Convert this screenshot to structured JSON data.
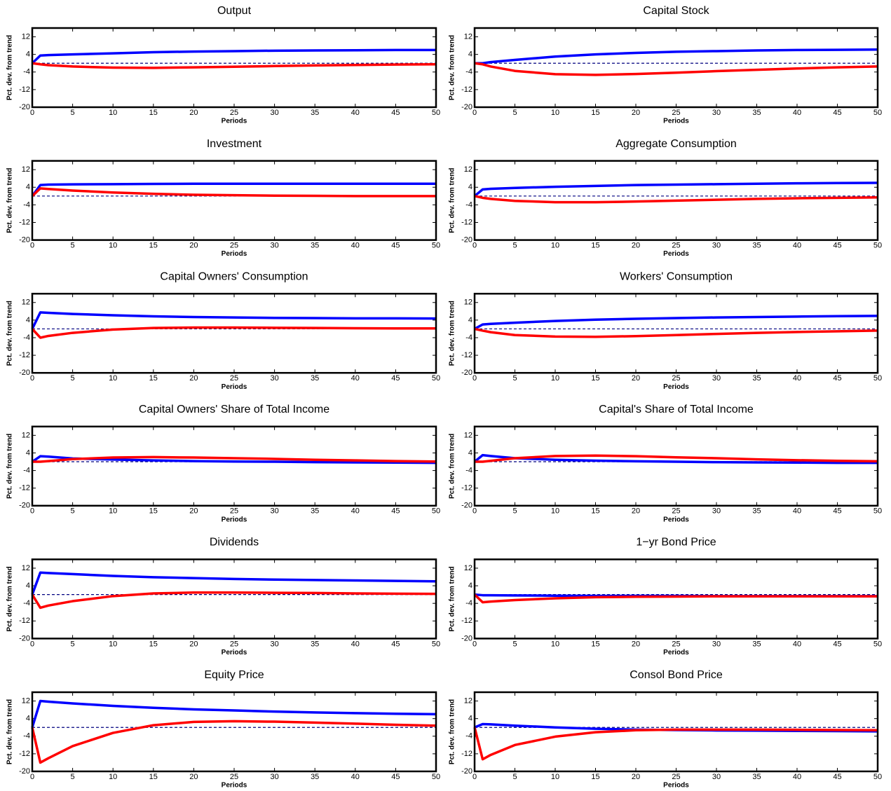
{
  "chart_data": [
    {
      "type": "line",
      "title": "Output",
      "xlabel": "Periods",
      "ylabel": "Pct. dev. from trend",
      "xlim": [
        0,
        50
      ],
      "xticks": [
        0,
        5,
        10,
        15,
        20,
        25,
        30,
        35,
        40,
        45,
        50
      ],
      "ylim": [
        -20,
        16
      ],
      "yticks": [
        -20,
        -12,
        -4,
        4,
        12
      ],
      "hline": 0,
      "hline_color": "#000080",
      "x": [
        0,
        1,
        2,
        5,
        10,
        15,
        20,
        25,
        30,
        35,
        40,
        45,
        50
      ],
      "series": [
        {
          "color": "#0000ff",
          "values": [
            0,
            3.5,
            3.7,
            4,
            4.5,
            5,
            5.3,
            5.5,
            5.7,
            5.8,
            5.9,
            6,
            6
          ]
        },
        {
          "color": "#ff0000",
          "values": [
            0,
            -0.5,
            -0.9,
            -1.5,
            -2,
            -2.1,
            -1.9,
            -1.6,
            -1.3,
            -1,
            -0.8,
            -0.6,
            -0.5
          ]
        }
      ]
    },
    {
      "type": "line",
      "title": "Capital Stock",
      "xlabel": "Periods",
      "ylabel": "Pct. dev. from trend",
      "xlim": [
        0,
        50
      ],
      "xticks": [
        0,
        5,
        10,
        15,
        20,
        25,
        30,
        35,
        40,
        45,
        50
      ],
      "ylim": [
        -20,
        16
      ],
      "yticks": [
        -20,
        -12,
        -4,
        4,
        12
      ],
      "hline": 0,
      "hline_color": "#000080",
      "x": [
        0,
        1,
        2,
        5,
        10,
        15,
        20,
        25,
        30,
        35,
        40,
        45,
        50
      ],
      "series": [
        {
          "color": "#0000ff",
          "values": [
            0,
            0,
            0.5,
            1.5,
            3,
            4,
            4.7,
            5.2,
            5.5,
            5.8,
            6,
            6.1,
            6.2
          ]
        },
        {
          "color": "#ff0000",
          "values": [
            0,
            -0.5,
            -1.5,
            -3.5,
            -5,
            -5.3,
            -4.9,
            -4.3,
            -3.6,
            -3,
            -2.4,
            -1.9,
            -1.5
          ]
        }
      ]
    },
    {
      "type": "line",
      "title": "Investment",
      "xlabel": "Periods",
      "ylabel": "Pct. dev. from trend",
      "xlim": [
        0,
        50
      ],
      "xticks": [
        0,
        5,
        10,
        15,
        20,
        25,
        30,
        35,
        40,
        45,
        50
      ],
      "ylim": [
        -20,
        16
      ],
      "yticks": [
        -20,
        -12,
        -4,
        4,
        12
      ],
      "hline": 0,
      "hline_color": "#000080",
      "x": [
        0,
        1,
        2,
        5,
        10,
        15,
        20,
        25,
        30,
        35,
        40,
        45,
        50
      ],
      "series": [
        {
          "color": "#0000ff",
          "values": [
            0,
            5,
            5.2,
            5.3,
            5.4,
            5.5,
            5.6,
            5.6,
            5.6,
            5.6,
            5.6,
            5.6,
            5.6
          ]
        },
        {
          "color": "#ff0000",
          "values": [
            0,
            3.5,
            3.2,
            2.5,
            1.6,
            1,
            0.6,
            0.4,
            0.2,
            0.1,
            0,
            0,
            0
          ]
        }
      ]
    },
    {
      "type": "line",
      "title": "Aggregate Consumption",
      "xlabel": "Periods",
      "ylabel": "Pct. dev. from trend",
      "xlim": [
        0,
        50
      ],
      "xticks": [
        0,
        5,
        10,
        15,
        20,
        25,
        30,
        35,
        40,
        45,
        50
      ],
      "ylim": [
        -20,
        16
      ],
      "yticks": [
        -20,
        -12,
        -4,
        4,
        12
      ],
      "hline": 0,
      "hline_color": "#000080",
      "x": [
        0,
        1,
        2,
        5,
        10,
        15,
        20,
        25,
        30,
        35,
        40,
        45,
        50
      ],
      "series": [
        {
          "color": "#0000ff",
          "values": [
            0,
            3,
            3.3,
            3.7,
            4.2,
            4.6,
            5,
            5.2,
            5.4,
            5.6,
            5.8,
            5.9,
            6
          ]
        },
        {
          "color": "#ff0000",
          "values": [
            0,
            -0.8,
            -1.3,
            -2.2,
            -2.8,
            -2.8,
            -2.5,
            -2.1,
            -1.7,
            -1.3,
            -1,
            -0.8,
            -0.6
          ]
        }
      ]
    },
    {
      "type": "line",
      "title": "Capital Owners' Consumption",
      "xlabel": "Periods",
      "ylabel": "Pct. dev. from trend",
      "xlim": [
        0,
        50
      ],
      "xticks": [
        0,
        5,
        10,
        15,
        20,
        25,
        30,
        35,
        40,
        45,
        50
      ],
      "ylim": [
        -20,
        16
      ],
      "yticks": [
        -20,
        -12,
        -4,
        4,
        12
      ],
      "hline": 0,
      "hline_color": "#000080",
      "x": [
        0,
        1,
        2,
        5,
        10,
        15,
        20,
        25,
        30,
        35,
        40,
        45,
        50
      ],
      "series": [
        {
          "color": "#0000ff",
          "values": [
            0,
            7.5,
            7.3,
            6.8,
            6.2,
            5.7,
            5.4,
            5.2,
            5,
            4.9,
            4.8,
            4.8,
            4.7
          ]
        },
        {
          "color": "#ff0000",
          "values": [
            0,
            -4,
            -3.2,
            -1.8,
            -0.3,
            0.4,
            0.6,
            0.6,
            0.5,
            0.4,
            0.3,
            0.2,
            0.2
          ]
        }
      ]
    },
    {
      "type": "line",
      "title": "Workers' Consumption",
      "xlabel": "Periods",
      "ylabel": "Pct. dev. from trend",
      "xlim": [
        0,
        50
      ],
      "xticks": [
        0,
        5,
        10,
        15,
        20,
        25,
        30,
        35,
        40,
        45,
        50
      ],
      "ylim": [
        -20,
        16
      ],
      "yticks": [
        -20,
        -12,
        -4,
        4,
        12
      ],
      "hline": 0,
      "hline_color": "#000080",
      "x": [
        0,
        1,
        2,
        5,
        10,
        15,
        20,
        25,
        30,
        35,
        40,
        45,
        50
      ],
      "series": [
        {
          "color": "#0000ff",
          "values": [
            0,
            2,
            2.3,
            2.8,
            3.6,
            4.2,
            4.6,
            4.9,
            5.2,
            5.4,
            5.6,
            5.8,
            5.9
          ]
        },
        {
          "color": "#ff0000",
          "values": [
            0,
            -0.8,
            -1.5,
            -2.8,
            -3.5,
            -3.6,
            -3.3,
            -2.8,
            -2.3,
            -1.8,
            -1.4,
            -1.1,
            -0.8
          ]
        }
      ]
    },
    {
      "type": "line",
      "title": "Capital Owners' Share of Total Income",
      "xlabel": "Periods",
      "ylabel": "Pct. dev. from trend",
      "xlim": [
        0,
        50
      ],
      "xticks": [
        0,
        5,
        10,
        15,
        20,
        25,
        30,
        35,
        40,
        45,
        50
      ],
      "ylim": [
        -20,
        16
      ],
      "yticks": [
        -20,
        -12,
        -4,
        4,
        12
      ],
      "hline": 0,
      "hline_color": "#000080",
      "x": [
        0,
        1,
        2,
        5,
        10,
        15,
        20,
        25,
        30,
        35,
        40,
        45,
        50
      ],
      "series": [
        {
          "color": "#0000ff",
          "values": [
            0,
            2.5,
            2.3,
            1.5,
            1,
            0.6,
            0.3,
            0.1,
            0,
            -0.2,
            -0.3,
            -0.4,
            -0.5
          ]
        },
        {
          "color": "#ff0000",
          "values": [
            0,
            0,
            0.3,
            1.2,
            1.9,
            2.1,
            1.9,
            1.6,
            1.3,
            0.9,
            0.6,
            0.3,
            0.1
          ]
        }
      ]
    },
    {
      "type": "line",
      "title": "Capital's Share of Total Income",
      "xlabel": "Periods",
      "ylabel": "Pct. dev. from trend",
      "xlim": [
        0,
        50
      ],
      "xticks": [
        0,
        5,
        10,
        15,
        20,
        25,
        30,
        35,
        40,
        45,
        50
      ],
      "ylim": [
        -20,
        16
      ],
      "yticks": [
        -20,
        -12,
        -4,
        4,
        12
      ],
      "hline": 0,
      "hline_color": "#000080",
      "x": [
        0,
        1,
        2,
        5,
        10,
        15,
        20,
        25,
        30,
        35,
        40,
        45,
        50
      ],
      "series": [
        {
          "color": "#0000ff",
          "values": [
            0,
            3,
            2.6,
            1.6,
            0.9,
            0.5,
            0.2,
            0,
            -0.2,
            -0.3,
            -0.4,
            -0.5,
            -0.5
          ]
        },
        {
          "color": "#ff0000",
          "values": [
            0,
            0,
            0.4,
            1.6,
            2.6,
            2.8,
            2.5,
            2,
            1.6,
            1.1,
            0.7,
            0.4,
            0.2
          ]
        }
      ]
    },
    {
      "type": "line",
      "title": "Dividends",
      "xlabel": "Periods",
      "ylabel": "Pct. dev. from trend",
      "xlim": [
        0,
        50
      ],
      "xticks": [
        0,
        5,
        10,
        15,
        20,
        25,
        30,
        35,
        40,
        45,
        50
      ],
      "ylim": [
        -20,
        16
      ],
      "yticks": [
        -20,
        -12,
        -4,
        4,
        12
      ],
      "hline": 0,
      "hline_color": "#000080",
      "x": [
        0,
        1,
        2,
        5,
        10,
        15,
        20,
        25,
        30,
        35,
        40,
        45,
        50
      ],
      "series": [
        {
          "color": "#0000ff",
          "values": [
            0,
            10,
            9.8,
            9.3,
            8.5,
            7.9,
            7.5,
            7.1,
            6.8,
            6.6,
            6.4,
            6.2,
            6
          ]
        },
        {
          "color": "#ff0000",
          "values": [
            0,
            -6,
            -5,
            -3,
            -0.7,
            0.5,
            0.9,
            0.9,
            0.8,
            0.7,
            0.5,
            0.4,
            0.3
          ]
        }
      ]
    },
    {
      "type": "line",
      "title": "1−yr Bond Price",
      "xlabel": "Periods",
      "ylabel": "Pct. dev. from trend",
      "xlim": [
        0,
        50
      ],
      "xticks": [
        0,
        5,
        10,
        15,
        20,
        25,
        30,
        35,
        40,
        45,
        50
      ],
      "ylim": [
        -20,
        16
      ],
      "yticks": [
        -20,
        -12,
        -4,
        4,
        12
      ],
      "hline": 0,
      "hline_color": "#000080",
      "x": [
        0,
        1,
        2,
        5,
        10,
        15,
        20,
        25,
        30,
        35,
        40,
        45,
        50
      ],
      "series": [
        {
          "color": "#0000ff",
          "values": [
            0,
            -0.3,
            -0.3,
            -0.4,
            -0.5,
            -0.6,
            -0.6,
            -0.6,
            -0.7,
            -0.7,
            -0.7,
            -0.7,
            -0.7
          ]
        },
        {
          "color": "#ff0000",
          "values": [
            0,
            -3.5,
            -3.2,
            -2.5,
            -1.7,
            -1.2,
            -1,
            -0.9,
            -0.8,
            -0.8,
            -0.8,
            -0.8,
            -0.8
          ]
        }
      ]
    },
    {
      "type": "line",
      "title": "Equity Price",
      "xlabel": "Periods",
      "ylabel": "Pct. dev. from trend",
      "xlim": [
        0,
        50
      ],
      "xticks": [
        0,
        5,
        10,
        15,
        20,
        25,
        30,
        35,
        40,
        45,
        50
      ],
      "ylim": [
        -20,
        16
      ],
      "yticks": [
        -20,
        -12,
        -4,
        4,
        12
      ],
      "hline": 0,
      "hline_color": "#000080",
      "x": [
        0,
        1,
        2,
        5,
        10,
        15,
        20,
        25,
        30,
        35,
        40,
        45,
        50
      ],
      "series": [
        {
          "color": "#0000ff",
          "values": [
            0,
            12,
            11.7,
            10.9,
            9.8,
            8.9,
            8.2,
            7.7,
            7.2,
            6.8,
            6.5,
            6.2,
            6
          ]
        },
        {
          "color": "#ff0000",
          "values": [
            0,
            -16,
            -14,
            -8.5,
            -2.5,
            1,
            2.5,
            2.8,
            2.6,
            2.2,
            1.7,
            1.2,
            0.8
          ]
        }
      ]
    },
    {
      "type": "line",
      "title": "Consol Bond Price",
      "xlabel": "Periods",
      "ylabel": "Pct. dev. from trend",
      "xlim": [
        0,
        50
      ],
      "xticks": [
        0,
        5,
        10,
        15,
        20,
        25,
        30,
        35,
        40,
        45,
        50
      ],
      "ylim": [
        -20,
        16
      ],
      "yticks": [
        -20,
        -12,
        -4,
        4,
        12
      ],
      "hline": 0,
      "hline_color": "#000080",
      "x": [
        0,
        1,
        2,
        5,
        10,
        15,
        20,
        25,
        30,
        35,
        40,
        45,
        50
      ],
      "series": [
        {
          "color": "#0000ff",
          "values": [
            0,
            1.5,
            1.4,
            0.8,
            0,
            -0.6,
            -1,
            -1.2,
            -1.4,
            -1.5,
            -1.6,
            -1.7,
            -1.8
          ]
        },
        {
          "color": "#ff0000",
          "values": [
            0,
            -14.5,
            -12.5,
            -8,
            -4.2,
            -2.2,
            -1.3,
            -1,
            -1,
            -1,
            -1.1,
            -1.2,
            -1.3
          ]
        }
      ]
    }
  ]
}
